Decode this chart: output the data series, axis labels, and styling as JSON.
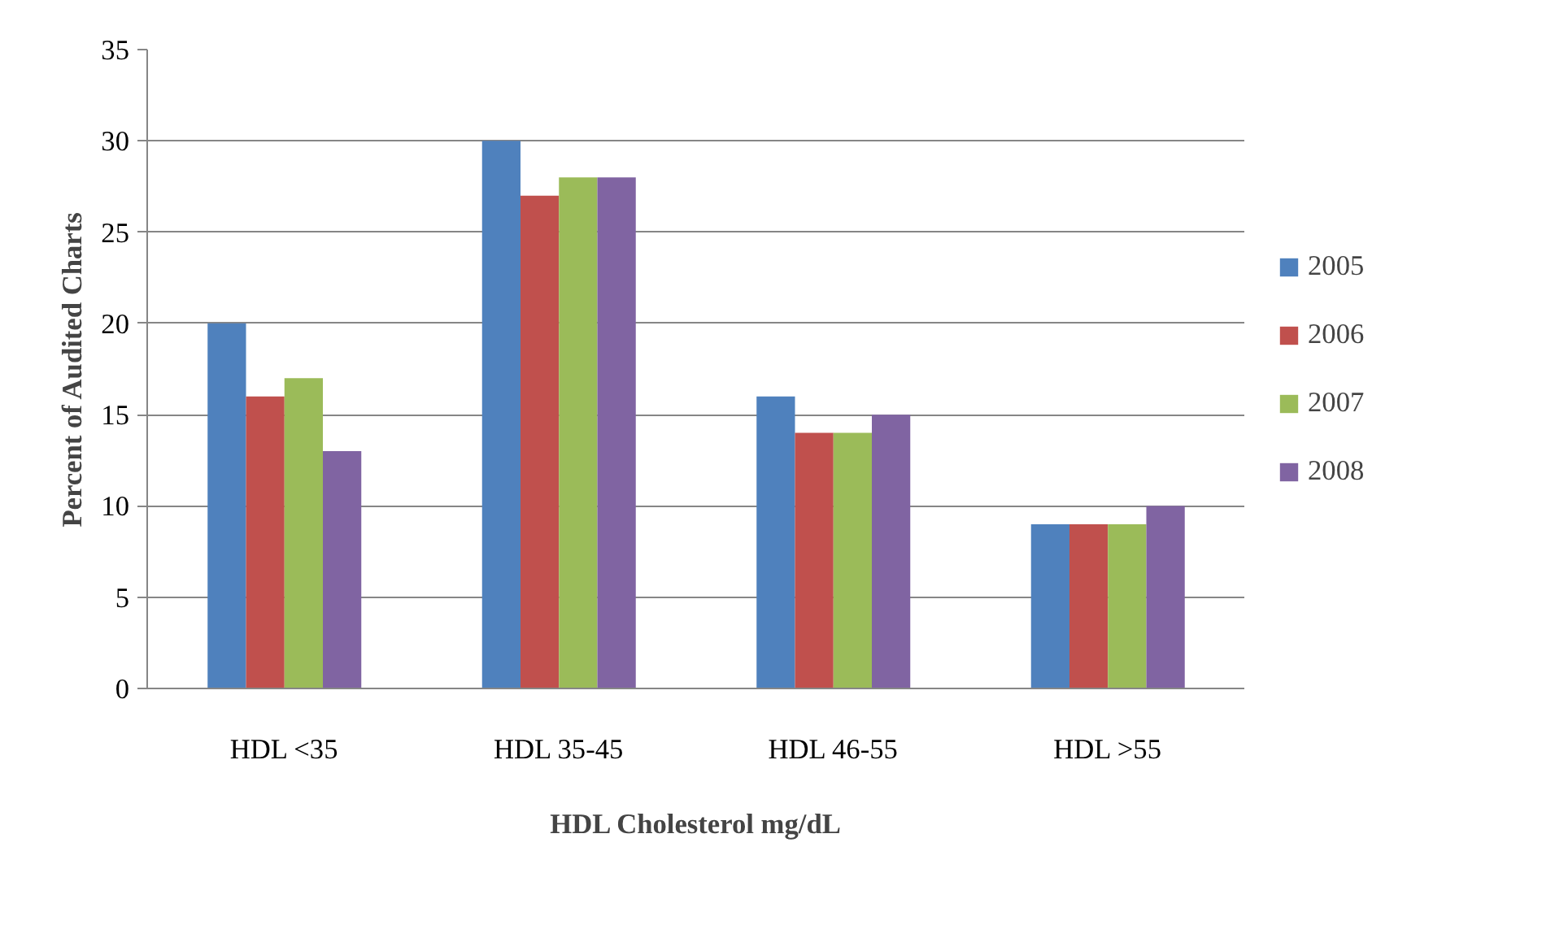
{
  "chart_data": {
    "type": "bar",
    "xlabel": "HDL Cholesterol mg/dL",
    "ylabel": "Percent of Audited Charts",
    "categories": [
      "HDL <35",
      "HDL 35-45",
      "HDL 46-55",
      "HDL >55"
    ],
    "series": [
      {
        "name": "2005",
        "color": "#4f81bd",
        "values": [
          20,
          30,
          16,
          9
        ]
      },
      {
        "name": "2006",
        "color": "#c0504d",
        "values": [
          16,
          27,
          14,
          9
        ]
      },
      {
        "name": "2007",
        "color": "#9bbb59",
        "values": [
          17,
          28,
          14,
          9
        ]
      },
      {
        "name": "2008",
        "color": "#8064a2",
        "values": [
          13,
          28,
          15,
          10
        ]
      }
    ],
    "ylim": [
      0,
      35
    ],
    "yticks": [
      0,
      5,
      10,
      15,
      20,
      25,
      30,
      35
    ],
    "grid": "y",
    "legend": "right"
  }
}
